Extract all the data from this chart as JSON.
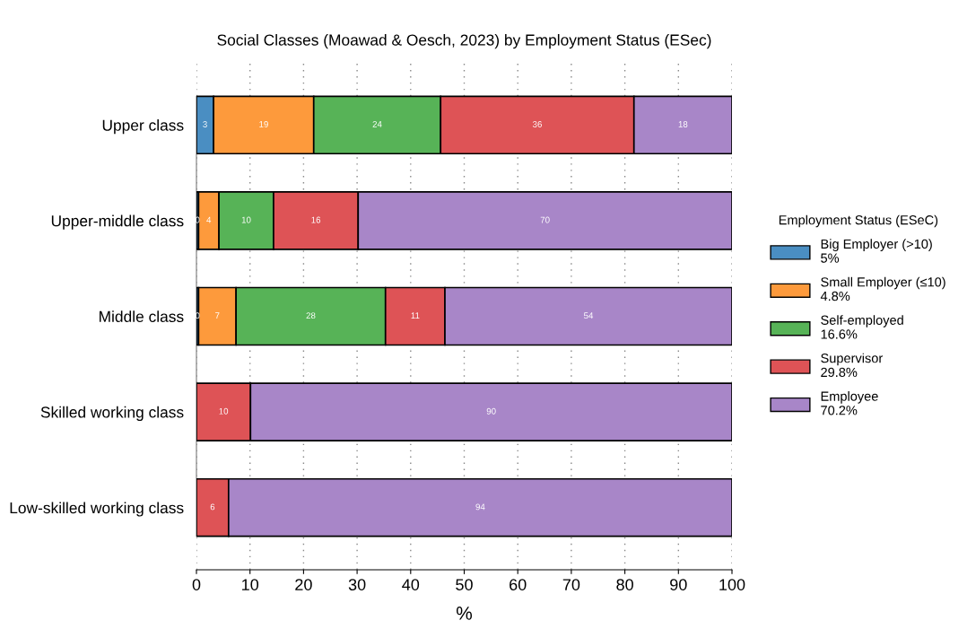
{
  "chart_data": {
    "type": "bar",
    "orientation": "horizontal",
    "stacked": true,
    "title": "Social Classes (Moawad & Oesch, 2023) by Employment Status (ESec)",
    "xlabel": "%",
    "legend_title": "Employment Status (ESeC)",
    "legend": "right",
    "grid": "x",
    "categories": [
      "Upper class",
      "Upper-middle class",
      "Middle class",
      "Skilled working class",
      "Low-skilled working class"
    ],
    "xlim": [
      0,
      100
    ],
    "xticks": [
      0,
      10,
      20,
      30,
      40,
      50,
      60,
      70,
      80,
      90,
      100
    ],
    "series": [
      {
        "name": "Big Employer (>10)\n5%",
        "color": "#4a8ec2",
        "values": [
          3.2,
          0.4,
          0.4,
          null,
          null
        ],
        "value_labels": [
          "3",
          "0",
          "0",
          null,
          null
        ]
      },
      {
        "name": "Small Employer (≤10)\n4.8%",
        "color": "#fd9a3c",
        "values": [
          18.7,
          3.8,
          7.0,
          null,
          null
        ],
        "value_labels": [
          "19",
          "4",
          "7",
          null,
          null
        ]
      },
      {
        "name": "Self-employed\n16.6%",
        "color": "#57b357",
        "values": [
          23.7,
          10.2,
          27.9,
          null,
          null
        ],
        "value_labels": [
          "24",
          "10",
          "28",
          null,
          null
        ]
      },
      {
        "name": "Supervisor\n29.8%",
        "color": "#de5356",
        "values": [
          36.1,
          15.8,
          11.1,
          10.1,
          6.0
        ],
        "value_labels": [
          "36",
          "16",
          "11",
          "10",
          "6"
        ]
      },
      {
        "name": "Employee\n70.2%",
        "color": "#a886c8",
        "values": [
          18.3,
          69.8,
          53.6,
          89.9,
          94.0
        ],
        "value_labels": [
          "18",
          "70",
          "54",
          "90",
          "94"
        ]
      }
    ]
  }
}
